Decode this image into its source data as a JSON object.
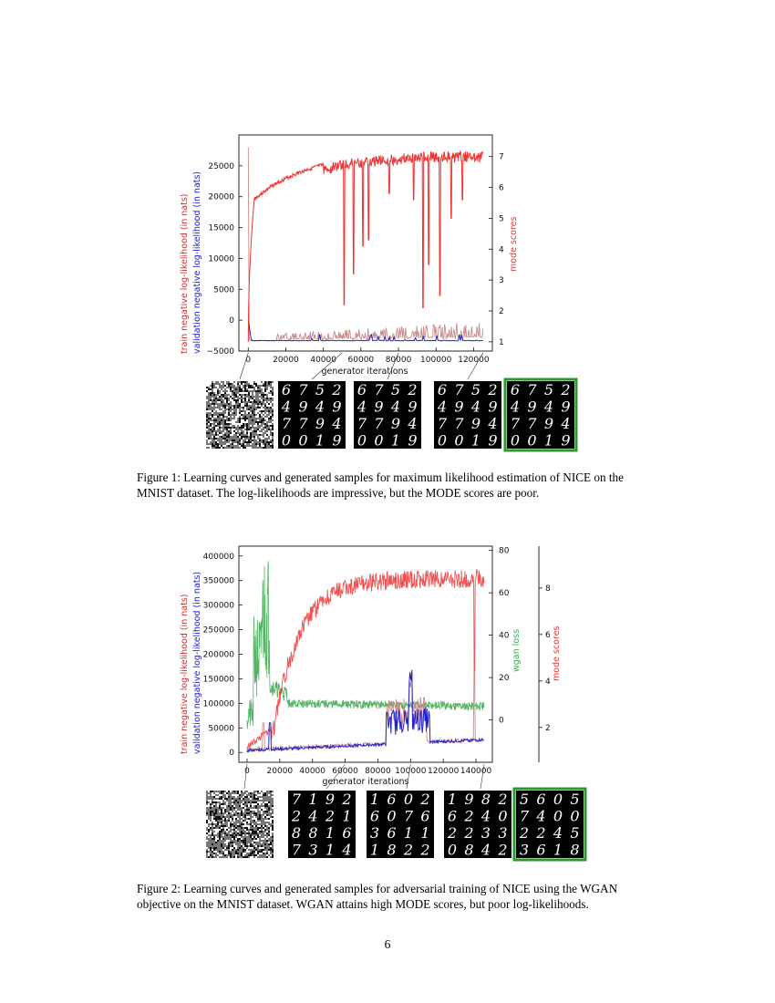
{
  "page_number": "6",
  "figure1": {
    "caption_text": "Figure 1: Learning curves and generated samples for maximum likelihood estimation of NICE on the MNIST dataset. The log-likelihoods are impressive, but the MODE scores are poor.",
    "xlabel": "generator iterations",
    "ylabel_train": "train negative log-likelihood (in nats)",
    "ylabel_val": "validation negative log-likelihood (in nats)",
    "ylabel_right": "mode scores",
    "left_ticks": [
      "25000",
      "20000",
      "15000",
      "10000",
      "5000",
      "0",
      "−5000"
    ],
    "right_ticks": [
      "7",
      "6",
      "5",
      "4",
      "3",
      "2",
      "1"
    ],
    "x_ticks": [
      "0",
      "20000",
      "40000",
      "60000",
      "80000",
      "100000",
      "120000"
    ],
    "sample_digits": [
      [
        "6",
        "7",
        "5",
        "2",
        "4",
        "9",
        "4",
        "9",
        "7",
        "7",
        "9",
        "4",
        "0",
        "0",
        "1",
        "9"
      ],
      [
        "6",
        "7",
        "5",
        "2",
        "4",
        "9",
        "4",
        "9",
        "7",
        "7",
        "9",
        "4",
        "0",
        "0",
        "1",
        "9"
      ],
      [
        "6",
        "7",
        "5",
        "2",
        "4",
        "9",
        "4",
        "9",
        "7",
        "7",
        "9",
        "4",
        "0",
        "0",
        "1",
        "9"
      ],
      [
        "6",
        "7",
        "5",
        "2",
        "4",
        "9",
        "4",
        "9",
        "7",
        "7",
        "9",
        "4",
        "0",
        "0",
        "1",
        "9"
      ]
    ]
  },
  "figure2": {
    "caption_text": "Figure 2: Learning curves and generated samples for adversarial training of NICE using the WGAN objective on the MNIST dataset. WGAN attains high MODE scores, but poor log-likelihoods.",
    "xlabel": "generator iterations",
    "ylabel_train": "train negative log-likelihood (in nats)",
    "ylabel_val": "validation negative log-likelihood (in nats)",
    "ylabel_wgan": "wgan loss",
    "ylabel_mode": "mode scores",
    "left_ticks": [
      "400000",
      "350000",
      "300000",
      "250000",
      "200000",
      "150000",
      "100000",
      "50000",
      "0"
    ],
    "wgan_ticks": [
      "80",
      "60",
      "40",
      "20",
      "0"
    ],
    "mode_ticks": [
      "8",
      "6",
      "4",
      "2"
    ],
    "x_ticks": [
      "0",
      "20000",
      "40000",
      "60000",
      "80000",
      "100000",
      "120000",
      "140000"
    ],
    "sample_digits": [
      [
        "7",
        "1",
        "9",
        "2",
        "2",
        "4",
        "2",
        "1",
        "8",
        "8",
        "1",
        "6",
        "7",
        "3",
        "1",
        "4"
      ],
      [
        "1",
        "6",
        "0",
        "2",
        "6",
        "0",
        "7",
        "6",
        "3",
        "6",
        "1",
        "1",
        "1",
        "8",
        "2",
        "2"
      ],
      [
        "1",
        "9",
        "8",
        "2",
        "6",
        "2",
        "4",
        "0",
        "2",
        "2",
        "3",
        "3",
        "0",
        "8",
        "4",
        "2"
      ],
      [
        "5",
        "6",
        "0",
        "5",
        "7",
        "4",
        "0",
        "0",
        "2",
        "2",
        "4",
        "5",
        "3",
        "6",
        "1",
        "8"
      ]
    ]
  },
  "colors": {
    "train": "#c98a8a",
    "validation": "#2222cc",
    "mode": "#ee3333",
    "wgan": "#44aa55",
    "highlight_border": "#2a9a2a"
  },
  "chart_data": [
    {
      "type": "line",
      "xlabel": "generator iterations",
      "ylabel": "train negative log-likelihood (in nats)",
      "y2label": "mode scores",
      "xlim": [
        -5000,
        130000
      ],
      "ylim": [
        -5000,
        30000
      ],
      "y2lim": [
        0.7,
        7.7
      ],
      "series": [
        {
          "name": "train negative log-likelihood (in nats)",
          "axis": "left",
          "x": [
            0,
            10000,
            20000,
            30000,
            40000,
            50000,
            60000,
            70000,
            80000,
            90000,
            100000,
            110000,
            120000,
            125000
          ],
          "values": [
            28000,
            -3200,
            -3300,
            -3000,
            -2500,
            -1500,
            -1200,
            -1500,
            -1000,
            -1500,
            -800,
            -1200,
            -1000,
            -1000
          ]
        },
        {
          "name": "validation negative log-likelihood (in nats)",
          "axis": "left",
          "x": [
            0,
            10000,
            20000,
            40000,
            60000,
            80000,
            100000,
            120000,
            125000
          ],
          "values": [
            0,
            -3300,
            -3300,
            -3200,
            -3100,
            -3000,
            -3000,
            -2900,
            -3000
          ]
        },
        {
          "name": "mode scores",
          "axis": "right",
          "x": [
            0,
            2000,
            5000,
            10000,
            20000,
            30000,
            40000,
            50000,
            60000,
            70000,
            80000,
            90000,
            100000,
            110000,
            120000,
            125000
          ],
          "values": [
            1.0,
            5.0,
            5.7,
            6.2,
            6.5,
            6.7,
            6.8,
            6.95,
            7.0,
            7.05,
            7.1,
            7.15,
            7.2,
            7.25,
            7.3,
            7.3
          ]
        }
      ]
    },
    {
      "type": "line",
      "xlabel": "generator iterations",
      "ylabel": "train negative log-likelihood (in nats)",
      "y2label": "wgan loss",
      "y3label": "mode scores",
      "xlim": [
        -5000,
        150000
      ],
      "ylim": [
        -20000,
        420000
      ],
      "y2lim": [
        -20,
        82
      ],
      "y3lim": [
        0.5,
        9.8
      ],
      "series": [
        {
          "name": "train negative log-likelihood (in nats)",
          "axis": "left",
          "x": [
            0,
            20000,
            40000,
            60000,
            80000,
            90000,
            95000,
            100000,
            110000,
            120000,
            140000,
            145000
          ],
          "values": [
            0,
            5000,
            10000,
            15000,
            30000,
            60000,
            90000,
            140000,
            50000,
            35000,
            40000,
            35000
          ]
        },
        {
          "name": "validation negative log-likelihood (in nats)",
          "axis": "left",
          "x": [
            0,
            20000,
            40000,
            60000,
            80000,
            90000,
            95000,
            100000,
            110000,
            120000,
            140000,
            145000
          ],
          "values": [
            0,
            2000,
            8000,
            12000,
            25000,
            50000,
            80000,
            150000,
            40000,
            30000,
            35000,
            30000
          ]
        },
        {
          "name": "wgan loss",
          "axis": "wgan",
          "x": [
            0,
            5000,
            10000,
            12000,
            15000,
            20000,
            30000,
            40000,
            60000,
            80000,
            100000,
            120000,
            145000
          ],
          "values": [
            0,
            15,
            45,
            80,
            20,
            13,
            10,
            8,
            7,
            7,
            7,
            6.5,
            6.5
          ]
        },
        {
          "name": "mode scores",
          "axis": "mode",
          "x": [
            0,
            10000,
            20000,
            30000,
            40000,
            50000,
            60000,
            80000,
            100000,
            120000,
            140000,
            145000
          ],
          "values": [
            1.0,
            2.0,
            4.5,
            6.8,
            8.0,
            8.4,
            8.6,
            8.8,
            8.9,
            8.9,
            8.8,
            8.8
          ]
        }
      ]
    }
  ]
}
